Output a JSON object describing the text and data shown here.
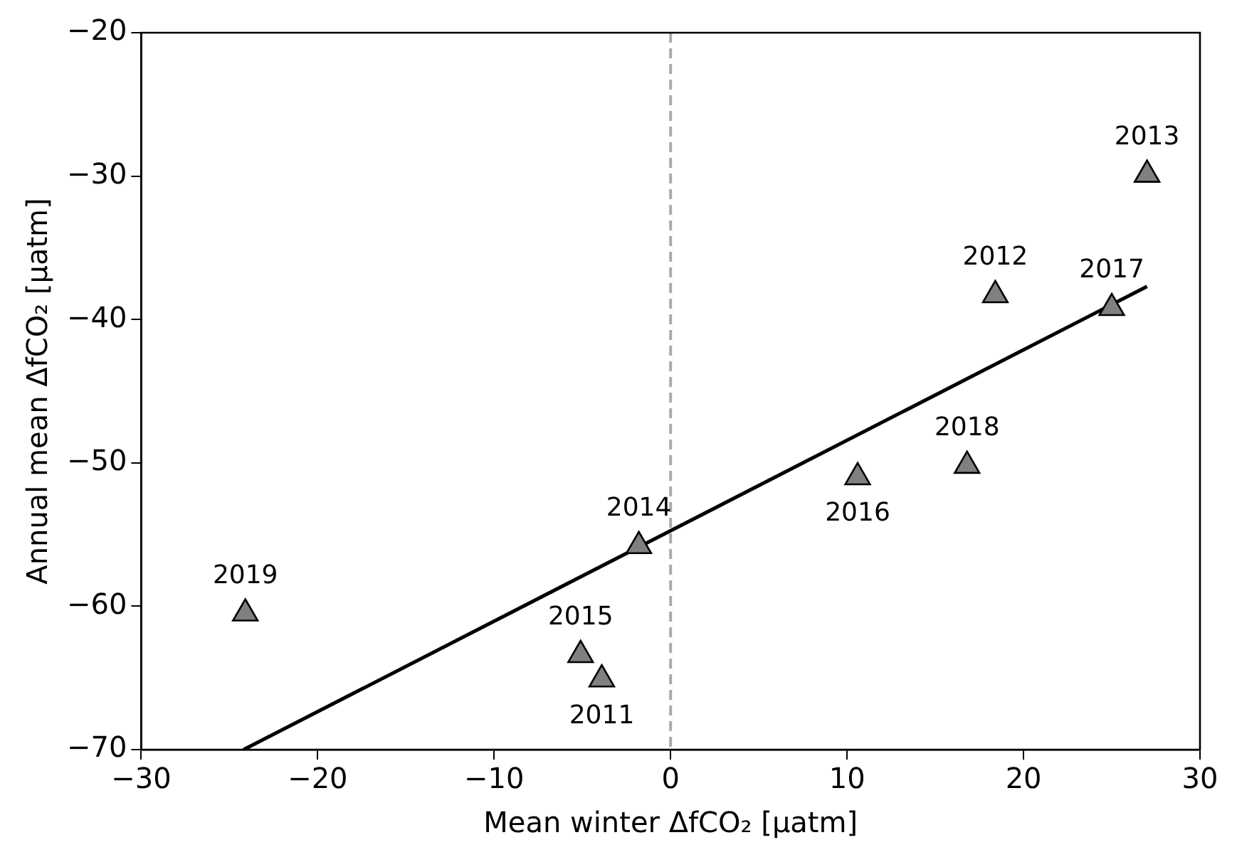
{
  "chart_data": {
    "type": "scatter",
    "xlabel": "Mean winter ΔfCO₂ [μatm]",
    "ylabel": "Annual mean ΔfCO₂ [μatm]",
    "xlim": [
      -30,
      30
    ],
    "ylim": [
      -70,
      -20
    ],
    "xticks": [
      {
        "value": -30,
        "label": "−30"
      },
      {
        "value": -20,
        "label": "−20"
      },
      {
        "value": -10,
        "label": "−10"
      },
      0,
      10,
      20,
      30
    ],
    "yticks": [
      {
        "value": -70,
        "label": "−70"
      },
      {
        "value": -60,
        "label": "−60"
      },
      {
        "value": -50,
        "label": "−50"
      },
      {
        "value": -40,
        "label": "−40"
      },
      {
        "value": -30,
        "label": "−30"
      },
      {
        "value": -20,
        "label": "−20"
      }
    ],
    "grid": false,
    "legend": false,
    "marker": "triangle",
    "series": [
      {
        "color": "#808080",
        "x": [
          -24.1,
          -5.1,
          -3.9,
          -1.8,
          10.6,
          16.8,
          18.4,
          25.0,
          27.0
        ],
        "values": [
          -60.5,
          -63.4,
          -65.1,
          -55.8,
          -51.0,
          -50.2,
          -38.3,
          -39.2,
          -29.9
        ]
      },
      {
        "type": "line",
        "color": "#000000",
        "line_style": "solid",
        "marker": "none",
        "x": [
          -24.2,
          27.0
        ],
        "values": [
          -70,
          -37.7
        ]
      }
    ],
    "ref_lines": [
      {
        "axis": "x",
        "value": 0,
        "color": "#aaaaaa",
        "line_style": "dashed"
      }
    ],
    "annotations": [
      {
        "text": "2019",
        "x": -24.1,
        "y": -60.5
      },
      {
        "text": "2015",
        "x": -5.1,
        "y": -63.4
      },
      {
        "text": "2011",
        "x": -3.9,
        "y": -65.1
      },
      {
        "text": "2014",
        "x": -1.8,
        "y": -55.8
      },
      {
        "text": "2016",
        "x": 10.6,
        "y": -51.0
      },
      {
        "text": "2018",
        "x": 16.8,
        "y": -50.2
      },
      {
        "text": "2012",
        "x": 18.4,
        "y": -38.3
      },
      {
        "text": "2017",
        "x": 25.0,
        "y": -39.2
      },
      {
        "text": "2013",
        "x": 27.0,
        "y": -29.9
      }
    ]
  }
}
